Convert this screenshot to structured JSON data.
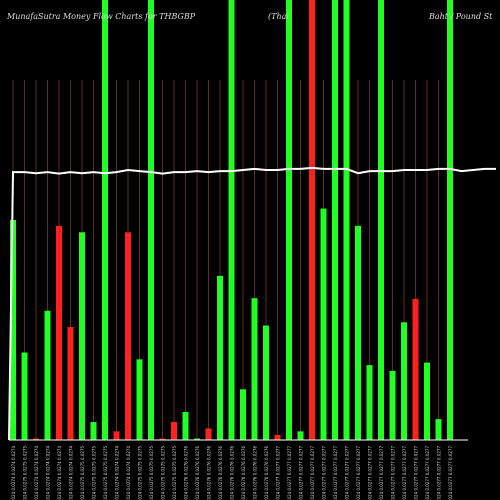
{
  "header": {
    "left": "MunafaSutra  Money Flow  Charts for THBGBP",
    "middle": "(Thai",
    "right": "Baht / Pound St"
  },
  "colors": {
    "background": "#000000",
    "up": "#22ff22",
    "down": "#ff2020",
    "grid": "#a0522d",
    "line": "#ffffff",
    "axis": "#ffffff"
  },
  "chart_data": {
    "type": "bar",
    "title": "MunafaSutra  Money Flow  Charts for THBGBP",
    "ylim": [
      0,
      100
    ],
    "price_line": [
      0,
      74.4,
      74.4,
      74.1,
      74.4,
      74.0,
      74.4,
      74.1,
      74.4,
      74.1,
      74.4,
      75.0,
      74.7,
      74.4,
      74.0,
      74.4,
      74.4,
      74.7,
      74.4,
      74.7,
      74.7,
      75.0,
      75.3,
      75.0,
      75.0,
      75.3,
      75.3,
      75.6,
      75.3,
      75.3,
      75.3,
      74.1,
      74.7,
      74.7,
      74.7,
      75.0,
      75.0,
      75.0,
      75.3,
      75.3,
      74.7,
      75.0,
      75.3,
      75.3
    ],
    "bars": [
      {
        "label": "03/09/2024 0.0274 0.0274 0.0274",
        "value": 61.1,
        "dir": "up"
      },
      {
        "label": "04/09/2024 0.0275 0.0275 0.0275",
        "value": 24.3,
        "dir": "up"
      },
      {
        "label": "05/09/2024 0.0274 0.0274 0.0274",
        "value": 0.4,
        "dir": "down"
      },
      {
        "label": "06/09/2024 0.0274 0.0274 0.0274",
        "value": 35.9,
        "dir": "up"
      },
      {
        "label": "09/09/2024 0.0274 0.0274 0.0274",
        "value": 59.5,
        "dir": "down"
      },
      {
        "label": "10/09/2024 0.0274 0.0274 0.0274",
        "value": 31.4,
        "dir": "down"
      },
      {
        "label": "11/09/2024 0.0275 0.0275 0.0275",
        "value": 57.7,
        "dir": "up"
      },
      {
        "label": "12/09/2024 0.0275 0.0275 0.0275",
        "value": 5.0,
        "dir": "up"
      },
      {
        "label": "13/09/2024 0.0275 0.0275 0.0275",
        "value": 100,
        "dir": "up"
      },
      {
        "label": "16/09/2024 0.0274 0.0274 0.0274",
        "value": 2.4,
        "dir": "down"
      },
      {
        "label": "17/09/2024 0.0274 0.0274 0.0274",
        "value": 57.7,
        "dir": "down"
      },
      {
        "label": "18/09/2024 0.0275 0.0275 0.0275",
        "value": 22.4,
        "dir": "up"
      },
      {
        "label": "19/09/2024 0.0275 0.0275 0.0275",
        "value": 100,
        "dir": "up"
      },
      {
        "label": "20/09/2024 0.0275 0.0275 0.0275",
        "value": 0.4,
        "dir": "down"
      },
      {
        "label": "23/09/2024 0.0275 0.0275 0.0275",
        "value": 5.0,
        "dir": "down"
      },
      {
        "label": "24/09/2024 0.0276 0.0276 0.0276",
        "value": 7.8,
        "dir": "up"
      },
      {
        "label": "25/09/2024 0.0276 0.0276 0.0276",
        "value": 0.4,
        "dir": "up"
      },
      {
        "label": "26/09/2024 0.0276 0.0276 0.0276",
        "value": 3.2,
        "dir": "down"
      },
      {
        "label": "27/09/2024 0.0276 0.0276 0.0276",
        "value": 45.6,
        "dir": "up"
      },
      {
        "label": "30/09/2024 0.0276 0.0276 0.0276",
        "value": 100,
        "dir": "up"
      },
      {
        "label": "01/10/2024 0.0276 0.0276 0.0276",
        "value": 14.1,
        "dir": "up"
      },
      {
        "label": "02/10/2024 0.0276 0.0276 0.0276",
        "value": 39.4,
        "dir": "up"
      },
      {
        "label": "03/10/2024 0.0276 0.0276 0.0276",
        "value": 31.8,
        "dir": "up"
      },
      {
        "label": "04/10/2024 0.0277 0.0277 0.0277",
        "value": 1.4,
        "dir": "down"
      },
      {
        "label": "07/10/2024 0.0277 0.0277 0.0277",
        "value": 100,
        "dir": "up"
      },
      {
        "label": "08/10/2024 0.0277 0.0277 0.0277",
        "value": 2.4,
        "dir": "up"
      },
      {
        "label": "09/10/2024 0.0277 0.0277 0.0277",
        "value": 100,
        "dir": "down"
      },
      {
        "label": "10/10/2024 0.0277 0.0277 0.0277",
        "value": 64.3,
        "dir": "up"
      },
      {
        "label": "11/10/2024 0.0277 0.0277 0.0277",
        "value": 100,
        "dir": "up"
      },
      {
        "label": "14/10/2024 0.0277 0.0277 0.0277",
        "value": 100,
        "dir": "up"
      },
      {
        "label": "15/10/2024 0.0277 0.0277 0.0277",
        "value": 59.5,
        "dir": "up"
      },
      {
        "label": "16/10/2024 0.0277 0.0277 0.0277",
        "value": 20.8,
        "dir": "up"
      },
      {
        "label": "17/10/2024 0.0277 0.0277 0.0277",
        "value": 100,
        "dir": "up"
      },
      {
        "label": "18/10/2024 0.0277 0.0277 0.0277",
        "value": 19.2,
        "dir": "up"
      },
      {
        "label": "21/10/2024 0.0277 0.0277 0.0277",
        "value": 32.7,
        "dir": "up"
      },
      {
        "label": "22/10/2024 0.0277 0.0277 0.0277",
        "value": 39.2,
        "dir": "down"
      },
      {
        "label": "23/10/2024 0.0277 0.0277 0.0277",
        "value": 21.5,
        "dir": "up"
      },
      {
        "label": "24/10/2024 0.0277 0.0277 0.0277",
        "value": 5.8,
        "dir": "up"
      },
      {
        "label": "25/10/2024 0.0277 0.0277 0.0277",
        "value": 100,
        "dir": "up"
      }
    ]
  }
}
